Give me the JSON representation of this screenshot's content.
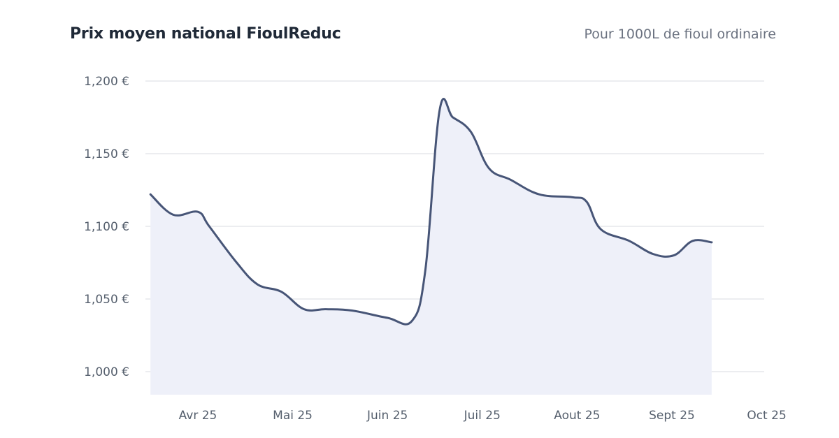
{
  "header": {
    "title": "Prix moyen national FioulReduc",
    "subtitle": "Pour 1000L de fioul ordinaire"
  },
  "chart_data": {
    "type": "area",
    "title": "Prix moyen national FioulReduc",
    "subtitle": "Pour 1000L de fioul ordinaire",
    "xlabel": "",
    "ylabel": "",
    "ylim": [
      980,
      1200
    ],
    "y_ticks": [
      1000,
      1050,
      1100,
      1150,
      1200
    ],
    "y_tick_labels": [
      "1,000 €",
      "1,050 €",
      "1,100 €",
      "1,150 €",
      "1,200 €"
    ],
    "x_range": [
      0,
      6.36
    ],
    "x_ticks": [
      0.5,
      1.5,
      2.5,
      3.5,
      4.5,
      5.5,
      6.5
    ],
    "x_tick_labels": [
      "Avr 25",
      "Mai 25",
      "Juin 25",
      "Juil 25",
      "Aout 25",
      "Sept 25",
      "Oct 25"
    ],
    "grid": true,
    "colors": {
      "line": "#475577",
      "fill": "#eef0f9",
      "grid": "#e5e7eb"
    },
    "series": [
      {
        "name": "Prix moyen national",
        "x": [
          0.0,
          0.24,
          0.5,
          0.62,
          0.91,
          1.13,
          1.38,
          1.62,
          1.85,
          2.13,
          2.5,
          2.76,
          2.9,
          3.05,
          3.19,
          3.38,
          3.57,
          3.8,
          4.1,
          4.45,
          4.6,
          4.75,
          5.05,
          5.3,
          5.52,
          5.72,
          5.92
        ],
        "values": [
          1122,
          1108,
          1110,
          1100,
          1075,
          1060,
          1055,
          1043,
          1043,
          1042,
          1037,
          1035,
          1070,
          1180,
          1175,
          1165,
          1140,
          1132,
          1122,
          1120,
          1117,
          1098,
          1090,
          1081,
          1080,
          1090,
          1089
        ]
      }
    ]
  }
}
